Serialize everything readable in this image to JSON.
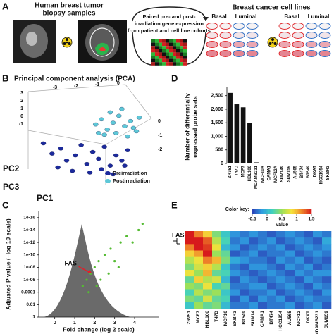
{
  "panel_a": {
    "label": "A",
    "tumor_title": [
      "Human breast tumor",
      "biopsy samples"
    ],
    "arrow_text": [
      "Paired pre- and post-",
      "irradiation gene expression",
      "from patient and cell line cohorts"
    ],
    "cell_lines_title": "Breast cancer cell lines",
    "dish_groups": [
      {
        "name": "Basal",
        "color": "#e0262b"
      },
      {
        "name": "Luminal",
        "color": "#2a6cc4"
      }
    ]
  },
  "chart_data": [
    {
      "type": "scatter3d",
      "panel": "B",
      "title": "Principal component analysis (PCA)",
      "axis_labels": {
        "pc1": "PC1",
        "pc2": "PC2",
        "pc3": "PC3"
      },
      "pc1ticks": [
        -3,
        -2,
        -1,
        0
      ],
      "pc2ticks": [
        3,
        2,
        1,
        0,
        -1
      ],
      "pc3ticks": [
        0,
        -1,
        -2
      ],
      "xlim": [
        -3,
        1
      ],
      "ylim": [
        -2,
        3
      ],
      "series": [
        {
          "name": "Preirradiation",
          "color": "#1c2a9c",
          "x": [
            -2.6,
            -2.3,
            -2.0,
            -1.8,
            -1.5,
            -1.3,
            -1.1,
            -0.9,
            -0.7,
            -0.5,
            -0.3,
            -0.1,
            0.1,
            0.3,
            -2.1,
            -1.6,
            -1.0,
            -0.6,
            -0.2,
            0.2
          ],
          "values": [
            0.4,
            -0.2,
            0.1,
            -0.6,
            -0.3,
            0.3,
            -0.8,
            -0.1,
            -0.5,
            0.2,
            -0.9,
            -0.3,
            -0.6,
            0.0,
            -1.0,
            -1.2,
            -1.3,
            -1.1,
            -1.4,
            -0.9
          ]
        },
        {
          "name": "Postirradiation",
          "color": "#5ec8d8",
          "x": [
            -0.8,
            -0.6,
            -0.4,
            -0.2,
            0.0,
            0.2,
            0.4,
            0.6,
            -0.5,
            -0.1,
            0.3,
            0.5,
            -0.3,
            0.1,
            0.7,
            -0.7
          ],
          "values": [
            1.5,
            1.8,
            1.2,
            1.6,
            2.0,
            1.4,
            1.7,
            1.1,
            0.9,
            1.0,
            0.8,
            1.3,
            2.2,
            2.4,
            1.9,
            1.0
          ]
        }
      ]
    },
    {
      "type": "bar",
      "panel": "D",
      "ylabel": [
        "Number of differentially",
        "expressed probe sets"
      ],
      "categories": [
        "ZR751",
        "T47D",
        "MCF7",
        "HBL100",
        "MDAMB231",
        "MCF10A",
        "CAMA1",
        "MCF12A",
        "SUM149",
        "SUM159",
        "AU565",
        "BT474",
        "BT549",
        "DKAT",
        "HCC1954",
        "SKBR3"
      ],
      "values": [
        2600,
        2180,
        2070,
        1500,
        40,
        5,
        5,
        5,
        5,
        5,
        5,
        5,
        5,
        5,
        5,
        5
      ],
      "color": "#111111",
      "ylim": [
        0,
        2700
      ],
      "yticks": [
        0,
        500,
        {
          "value": 1000,
          "label": "1,000"
        },
        {
          "value": 1500,
          "label": "1,500"
        },
        {
          "value": 2000,
          "label": "2,000"
        },
        {
          "value": 2500,
          "label": "2,500"
        }
      ]
    },
    {
      "type": "volcano",
      "panel": "C",
      "xlabel": "Fold change (log 2 scale)",
      "ylabel": "Adjusted P value (−log 10 scale)",
      "log_y": true,
      "xlim": [
        -0.8,
        5.2
      ],
      "ylim": [
        1,
        1e-17
      ],
      "xticks": [
        0,
        1,
        2,
        3,
        4
      ],
      "yticks": [
        1,
        0.01,
        0.0001,
        {
          "value": 1e-06,
          "label": "1e-06"
        },
        {
          "value": 1e-08,
          "label": "1e-08"
        },
        {
          "value": 1e-10,
          "label": "1e-10"
        },
        {
          "value": 1e-12,
          "label": "1e-12"
        },
        {
          "value": 1e-14,
          "label": "1e-14"
        },
        {
          "value": 1e-16,
          "label": "1e-16"
        }
      ],
      "series": [
        {
          "color": "#55bb33",
          "x": [
            1.4,
            1.6,
            1.8,
            2.0,
            2.2,
            2.5,
            2.8,
            3.0,
            3.3,
            3.6,
            3.9,
            4.2,
            4.4,
            2.3,
            2.7,
            3.2,
            1.7,
            2.1
          ],
          "values": [
            1e-05,
            1e-06,
            1e-07,
            1e-08,
            1e-09,
            1e-10,
            1e-11,
            1e-09,
            1e-12,
            1e-13,
            1e-12,
            1e-14,
            1e-15,
            1e-06,
            1e-07,
            1e-08,
            0.0001,
            1e-05
          ]
        }
      ],
      "annotations": [
        {
          "text": "FAS",
          "x": 1.9,
          "y": 1e-07,
          "color": "#e0202a"
        }
      ]
    },
    {
      "type": "heatmap",
      "panel": "E",
      "color_key_title": "Color key:",
      "color_key_label": "Value",
      "colorscale": [
        "#2b3fb5",
        "#2f9fe0",
        "#3fd0c0",
        "#9be05a",
        "#f5e23a",
        "#f08a2a",
        "#d7191c"
      ],
      "zlim": [
        -0.5,
        1.5
      ],
      "zticks": [
        -0.5,
        0,
        0.5,
        1,
        1.5
      ],
      "row_label": "FAS",
      "categories": [
        "ZR751",
        "MCF7",
        "HBL100",
        "T47D",
        "MCF10",
        "SKBR3",
        "BT549",
        "SUM14",
        "CAMA1",
        "BT474",
        "HCC1954",
        "AU565",
        "MCF12",
        "DKAT",
        "MDAMB231",
        "SUM159"
      ],
      "values": [
        [
          1.6,
          1.2,
          0.9,
          0.4,
          0.1,
          -0.2,
          -0.3,
          -0.2,
          -0.3,
          -0.4,
          -0.3,
          -0.2,
          -0.3,
          -0.4,
          -0.2,
          -0.3
        ],
        [
          1.8,
          1.5,
          1.3,
          0.6,
          0.2,
          -0.3,
          -0.2,
          -0.4,
          -0.3,
          -0.2,
          -0.4,
          -0.3,
          -0.2,
          -0.3,
          -0.4,
          -0.1
        ],
        [
          1.2,
          1.7,
          1.4,
          0.8,
          0.0,
          -0.2,
          -0.4,
          -0.3,
          -0.2,
          -0.3,
          -0.2,
          -0.4,
          -0.3,
          -0.2,
          -0.3,
          -0.2
        ],
        [
          0.9,
          1.1,
          1.6,
          0.5,
          0.3,
          -0.4,
          -0.3,
          -0.2,
          -0.4,
          -0.3,
          -0.3,
          -0.2,
          -0.4,
          -0.3,
          -0.2,
          -0.3
        ],
        [
          0.6,
          0.8,
          1.2,
          1.0,
          0.4,
          -0.1,
          -0.2,
          -0.3,
          -0.3,
          -0.4,
          -0.2,
          -0.3,
          -0.2,
          -0.4,
          -0.3,
          -0.4
        ],
        [
          0.4,
          0.7,
          0.9,
          0.6,
          0.1,
          -0.3,
          -0.4,
          -0.2,
          -0.2,
          -0.3,
          -0.4,
          -0.2,
          -0.3,
          -0.2,
          -0.4,
          -0.3
        ],
        [
          0.8,
          0.5,
          1.0,
          0.3,
          0.2,
          -0.2,
          -0.3,
          -0.4,
          -0.3,
          -0.2,
          -0.3,
          -0.4,
          -0.2,
          -0.3,
          -0.2,
          -0.2
        ],
        [
          0.3,
          0.9,
          0.6,
          0.7,
          0.0,
          -0.4,
          -0.2,
          -0.3,
          -0.4,
          -0.3,
          -0.2,
          -0.3,
          -0.4,
          -0.2,
          -0.3,
          -0.4
        ],
        [
          0.5,
          0.4,
          0.8,
          0.2,
          0.3,
          -0.3,
          -0.3,
          -0.2,
          -0.2,
          -0.4,
          -0.3,
          -0.2,
          -0.3,
          -0.4,
          -0.2,
          -0.3
        ],
        [
          0.2,
          0.6,
          0.4,
          0.5,
          0.1,
          -0.2,
          -0.4,
          -0.3,
          -0.3,
          -0.2,
          -0.4,
          -0.3,
          -0.2,
          -0.3,
          -0.4,
          -0.2
        ],
        [
          0.4,
          0.3,
          0.7,
          0.3,
          0.2,
          -0.4,
          -0.2,
          -0.4,
          -0.2,
          -0.3,
          -0.2,
          -0.4,
          -0.3,
          -0.2,
          -0.3,
          -0.3
        ],
        [
          0.1,
          0.5,
          0.3,
          0.4,
          0.0,
          -0.3,
          -0.3,
          -0.2,
          -0.4,
          -0.3,
          -0.3,
          -0.2,
          -0.4,
          -0.3,
          -0.2,
          -0.4
        ]
      ]
    }
  ]
}
